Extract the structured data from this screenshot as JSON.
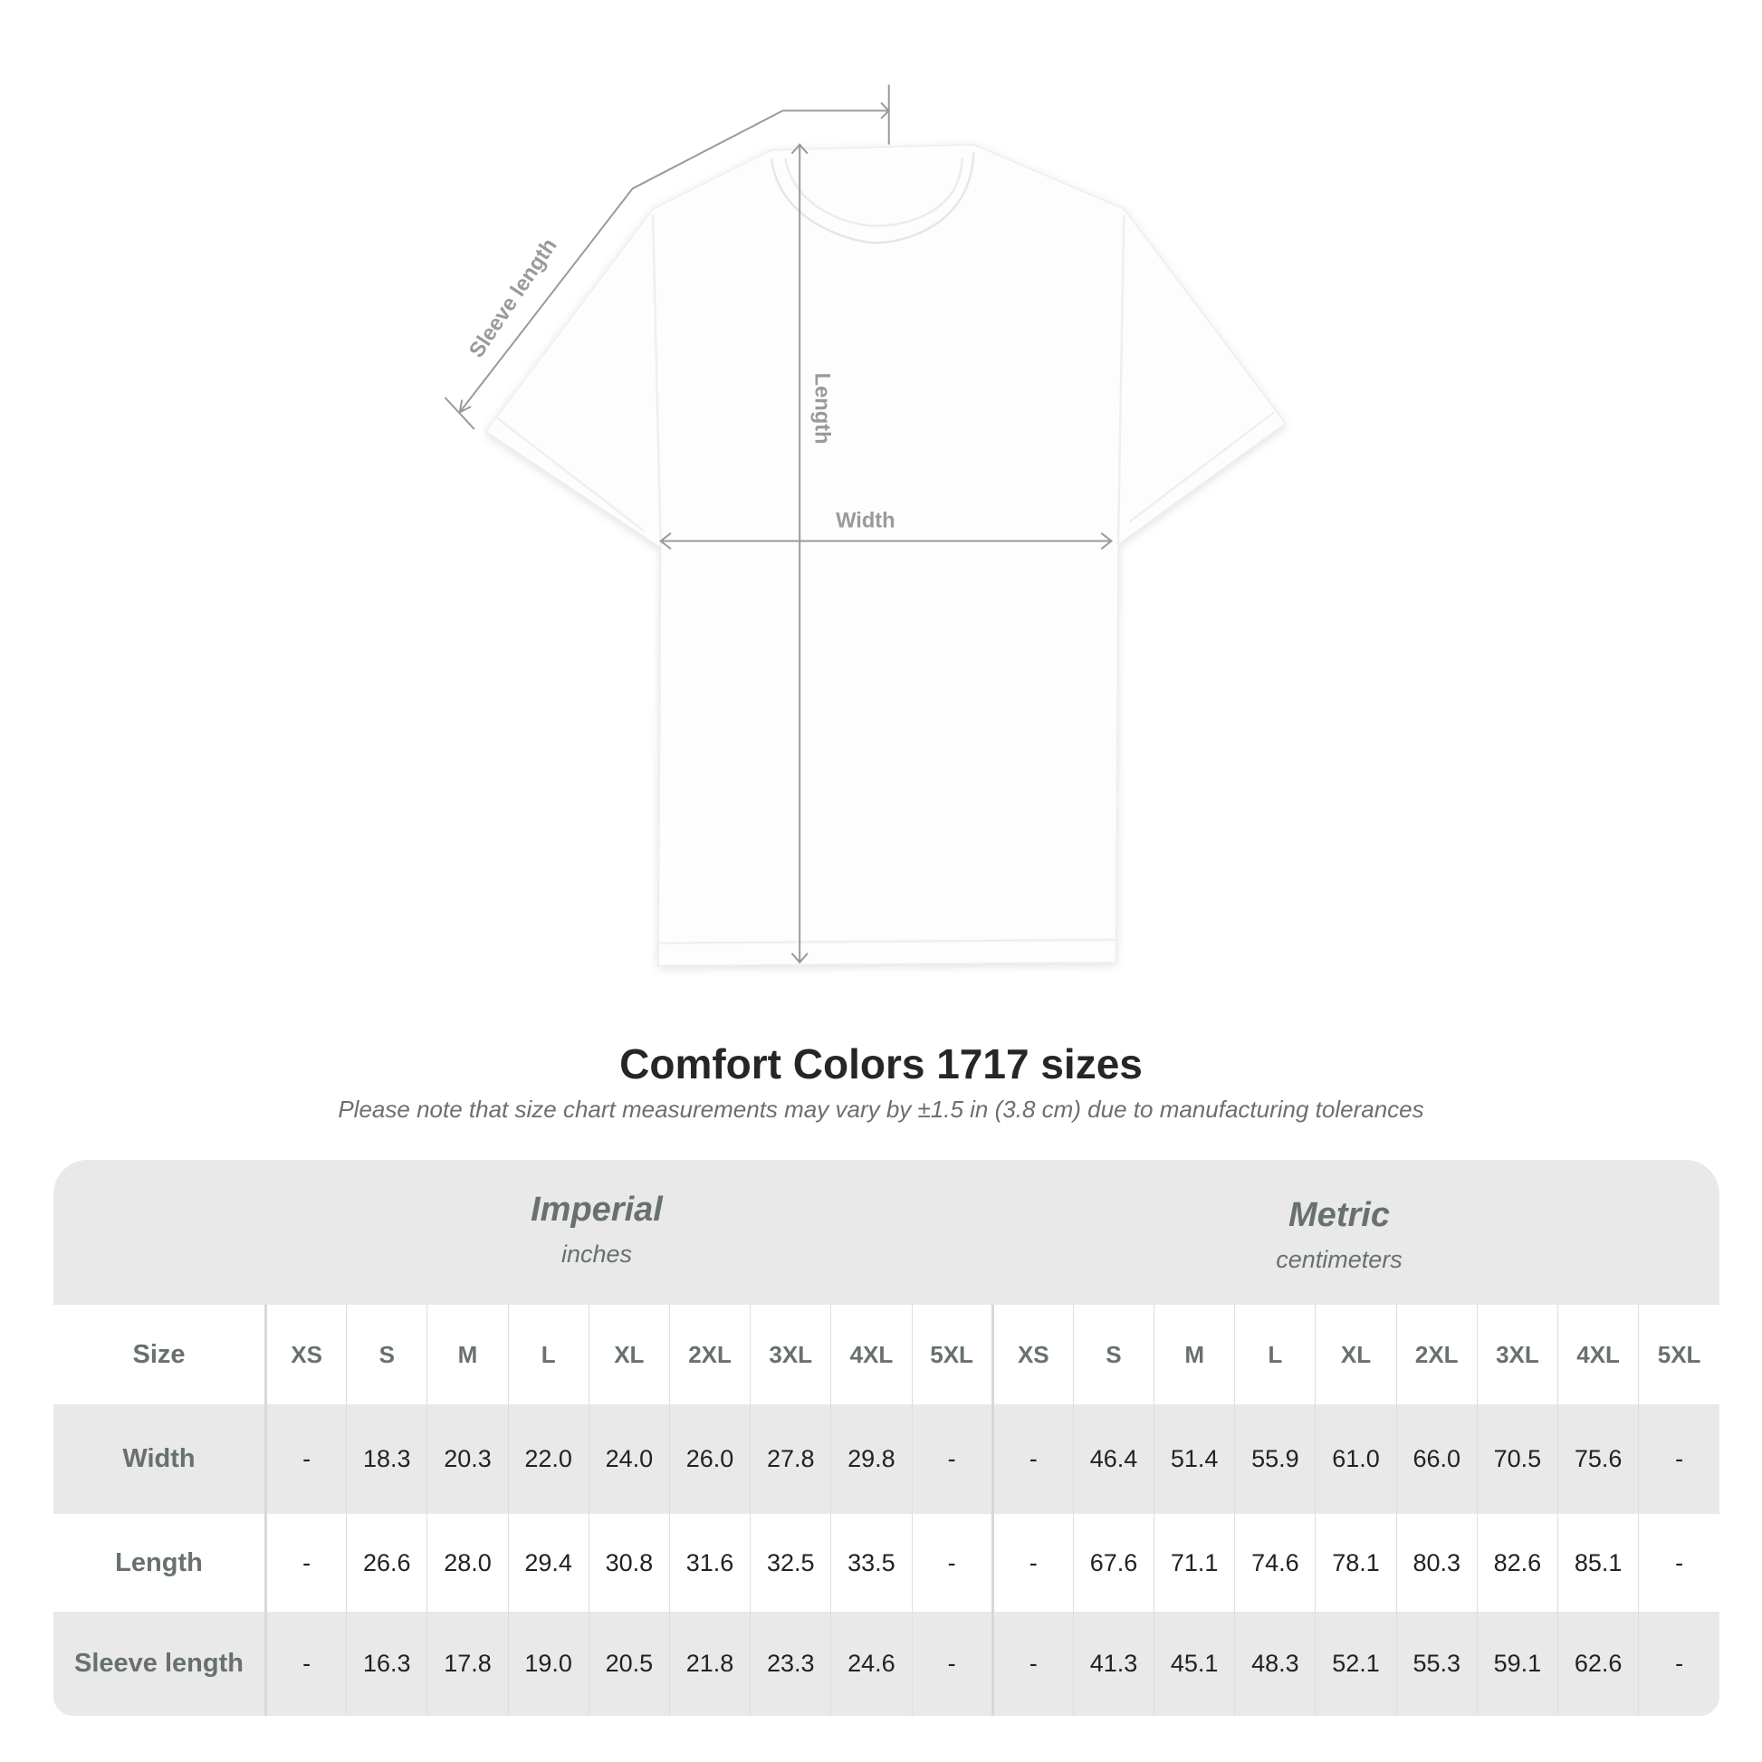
{
  "diagram": {
    "labels": {
      "sleeve": "Sleeve length",
      "length": "Length",
      "width": "Width"
    },
    "colors": {
      "line": "#9a9a9a",
      "shirt": "#ffffff"
    }
  },
  "title": "Comfort Colors 1717 sizes",
  "note": "Please note that size chart measurements may vary by ±1.5 in (3.8 cm) due to manufacturing tolerances",
  "table": {
    "imperial": {
      "name": "Imperial",
      "unit": "inches"
    },
    "metric": {
      "name": "Metric",
      "unit": "centimeters"
    },
    "size_label": "Size",
    "sizes": [
      "XS",
      "S",
      "M",
      "L",
      "XL",
      "2XL",
      "3XL",
      "4XL",
      "5XL"
    ],
    "rows": [
      {
        "label": "Width",
        "imperial": [
          "-",
          "18.3",
          "20.3",
          "22.0",
          "24.0",
          "26.0",
          "27.8",
          "29.8",
          "-"
        ],
        "metric": [
          "-",
          "46.4",
          "51.4",
          "55.9",
          "61.0",
          "66.0",
          "70.5",
          "75.6",
          "-"
        ]
      },
      {
        "label": "Length",
        "imperial": [
          "-",
          "26.6",
          "28.0",
          "29.4",
          "30.8",
          "31.6",
          "32.5",
          "33.5",
          "-"
        ],
        "metric": [
          "-",
          "67.6",
          "71.1",
          "74.6",
          "78.1",
          "80.3",
          "82.6",
          "85.1",
          "-"
        ]
      },
      {
        "label": "Sleeve length",
        "imperial": [
          "-",
          "16.3",
          "17.8",
          "19.0",
          "20.5",
          "21.8",
          "23.3",
          "24.6",
          "-"
        ],
        "metric": [
          "-",
          "41.3",
          "45.1",
          "48.3",
          "52.1",
          "55.3",
          "59.1",
          "62.6",
          "-"
        ]
      }
    ]
  }
}
